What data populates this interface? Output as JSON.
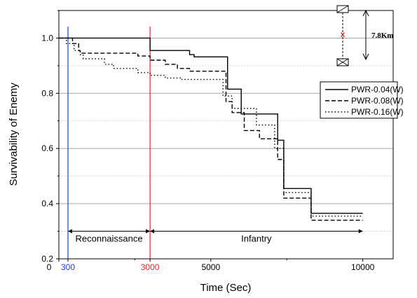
{
  "chart_data": {
    "type": "line",
    "xlabel": "Time (Sec)",
    "ylabel": "Survivability of Enemy",
    "xlim": [
      0,
      11000
    ],
    "ylim": [
      0.2,
      1.1
    ],
    "x_ticks": [
      {
        "value": 0,
        "label": "0",
        "color": "#000000"
      },
      {
        "value": 300,
        "label": "300",
        "color": "#1f3fd6"
      },
      {
        "value": 3000,
        "label": "3000",
        "color": "#e02a2a"
      },
      {
        "value": 5000,
        "label": "5000",
        "color": "#000000"
      },
      {
        "value": 10000,
        "label": "10000",
        "color": "#000000"
      }
    ],
    "y_ticks": [
      {
        "value": 0.2,
        "label": "0.2"
      },
      {
        "value": 0.4,
        "label": "0.4"
      },
      {
        "value": 0.6,
        "label": "0.6"
      },
      {
        "value": 0.8,
        "label": "0.8"
      },
      {
        "value": 1.0,
        "label": "1.0"
      }
    ],
    "grid": "horizontal",
    "legend_position": "right",
    "vertical_markers": [
      {
        "x": 300,
        "color": "#1f3fd6"
      },
      {
        "x": 3000,
        "color": "#e02a2a"
      }
    ],
    "phases": [
      {
        "label": "Reconnaissance",
        "x_start": 300,
        "x_end": 3000,
        "y": 0.3
      },
      {
        "label": "Infantry",
        "x_start": 3000,
        "x_end": 10000,
        "y": 0.3
      }
    ],
    "series": [
      {
        "name": "PWR-0.04(W)",
        "style": "solid",
        "points": [
          [
            0,
            1.0
          ],
          [
            3000,
            1.0
          ],
          [
            3000,
            0.955
          ],
          [
            4300,
            0.955
          ],
          [
            4300,
            0.94
          ],
          [
            4450,
            0.94
          ],
          [
            4450,
            0.932
          ],
          [
            5550,
            0.932
          ],
          [
            5550,
            0.815
          ],
          [
            6000,
            0.815
          ],
          [
            6000,
            0.725
          ],
          [
            7200,
            0.725
          ],
          [
            7200,
            0.63
          ],
          [
            7400,
            0.63
          ],
          [
            7400,
            0.455
          ],
          [
            8300,
            0.455
          ],
          [
            8300,
            0.365
          ],
          [
            10000,
            0.365
          ]
        ]
      },
      {
        "name": "PWR-0.08(W)",
        "style": "dashed",
        "points": [
          [
            0,
            1.0
          ],
          [
            450,
            1.0
          ],
          [
            450,
            0.98
          ],
          [
            650,
            0.98
          ],
          [
            650,
            0.955
          ],
          [
            700,
            0.955
          ],
          [
            700,
            0.945
          ],
          [
            2600,
            0.945
          ],
          [
            2600,
            0.935
          ],
          [
            3000,
            0.935
          ],
          [
            3000,
            0.92
          ],
          [
            3500,
            0.92
          ],
          [
            3500,
            0.905
          ],
          [
            3900,
            0.905
          ],
          [
            3900,
            0.89
          ],
          [
            4300,
            0.89
          ],
          [
            4300,
            0.88
          ],
          [
            5500,
            0.88
          ],
          [
            5500,
            0.77
          ],
          [
            5700,
            0.77
          ],
          [
            5700,
            0.73
          ],
          [
            6100,
            0.73
          ],
          [
            6100,
            0.665
          ],
          [
            6600,
            0.665
          ],
          [
            6600,
            0.635
          ],
          [
            7200,
            0.635
          ],
          [
            7200,
            0.56
          ],
          [
            7400,
            0.56
          ],
          [
            7400,
            0.42
          ],
          [
            8300,
            0.42
          ],
          [
            8300,
            0.34
          ],
          [
            10000,
            0.34
          ]
        ]
      },
      {
        "name": "PWR-0.16(W)",
        "style": "dotted",
        "points": [
          [
            0,
            1.0
          ],
          [
            250,
            1.0
          ],
          [
            250,
            0.98
          ],
          [
            500,
            0.98
          ],
          [
            500,
            0.955
          ],
          [
            700,
            0.955
          ],
          [
            700,
            0.94
          ],
          [
            800,
            0.94
          ],
          [
            800,
            0.925
          ],
          [
            1500,
            0.925
          ],
          [
            1500,
            0.905
          ],
          [
            1800,
            0.905
          ],
          [
            1800,
            0.89
          ],
          [
            2600,
            0.89
          ],
          [
            2600,
            0.875
          ],
          [
            3000,
            0.875
          ],
          [
            3000,
            0.865
          ],
          [
            3500,
            0.865
          ],
          [
            3500,
            0.855
          ],
          [
            4000,
            0.855
          ],
          [
            4000,
            0.85
          ],
          [
            5400,
            0.85
          ],
          [
            5400,
            0.79
          ],
          [
            5700,
            0.79
          ],
          [
            5700,
            0.745
          ],
          [
            6500,
            0.745
          ],
          [
            6500,
            0.685
          ],
          [
            7100,
            0.685
          ],
          [
            7100,
            0.6
          ],
          [
            7400,
            0.6
          ],
          [
            7400,
            0.44
          ],
          [
            8300,
            0.44
          ],
          [
            8300,
            0.355
          ],
          [
            10000,
            0.355
          ]
        ]
      }
    ],
    "inset_label": "7.8Km"
  }
}
